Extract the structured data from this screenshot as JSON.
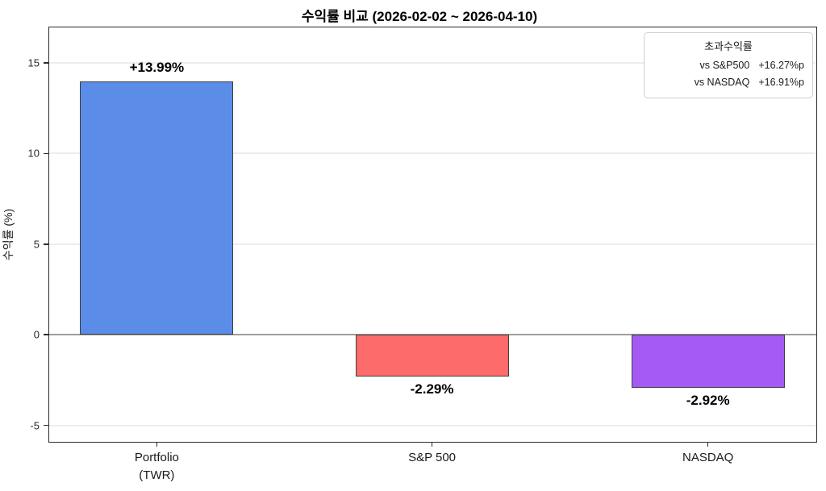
{
  "chart_data": {
    "type": "bar",
    "title": "수익률 비교 (2026-02-02 ~ 2026-04-10)",
    "xlabel": "",
    "ylabel": "수익률 (%)",
    "categories": [
      [
        "Portfolio",
        "(TWR)"
      ],
      [
        "S&P 500"
      ],
      [
        "NASDAQ"
      ]
    ],
    "values": [
      13.99,
      -2.29,
      -2.92
    ],
    "bar_labels": [
      "+13.99%",
      "-2.29%",
      "-2.92%"
    ],
    "bar_colors": [
      "#5b8ce8",
      "#fe6b6b",
      "#a55af5"
    ],
    "yticks": [
      15,
      10,
      5,
      0,
      -5
    ],
    "ylim": [
      -5.95,
      17.0
    ],
    "grid": true,
    "zero_line": true,
    "legend_position": "upper right"
  },
  "legend": {
    "title": "초과수익률",
    "rows": [
      {
        "label": "vs S&P500",
        "value": "+16.27%p"
      },
      {
        "label": "vs NASDAQ",
        "value": "+16.91%p"
      }
    ]
  },
  "colors": {
    "grid": "#ededed",
    "zero_line": "#9e9e9e",
    "spine": "#2b2b2b",
    "bar_edge": "#3f3f3f"
  }
}
